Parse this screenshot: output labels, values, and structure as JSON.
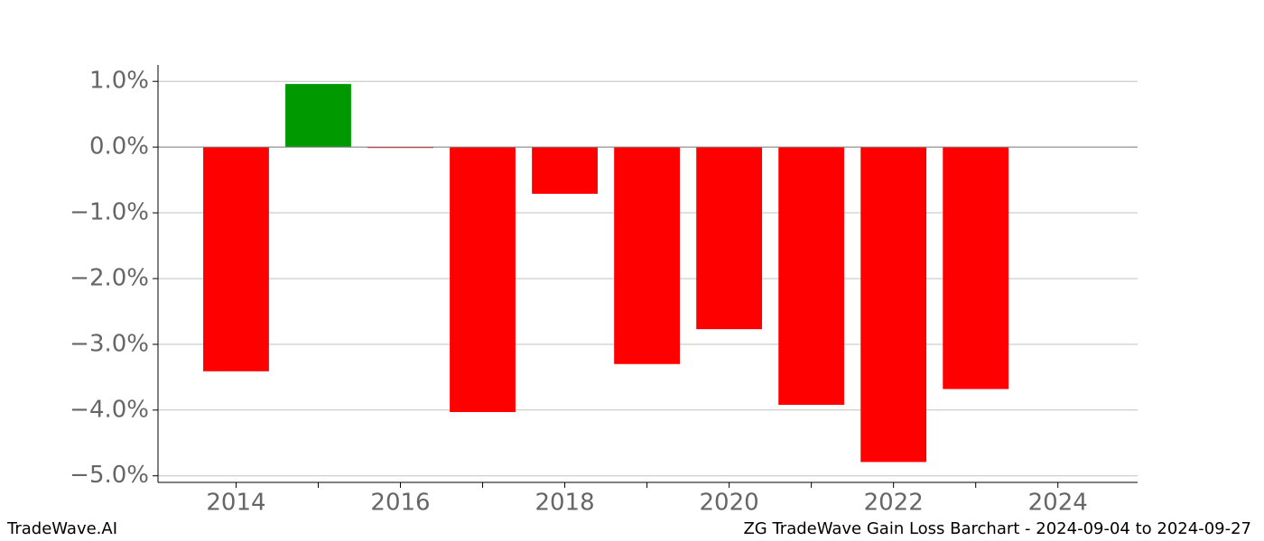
{
  "chart_data": {
    "type": "bar",
    "x": [
      2014,
      2015,
      2016,
      2017,
      2018,
      2019,
      2020,
      2021,
      2022,
      2023
    ],
    "values": [
      -3.41,
      0.96,
      -0.01,
      -4.03,
      -0.71,
      -3.3,
      -2.77,
      -3.92,
      -4.79,
      -3.68
    ],
    "positive_color": "#009900",
    "negative_color": "#ff0000",
    "xlim": [
      2013.05,
      2024.97
    ],
    "xticks": [
      2014,
      2016,
      2018,
      2020,
      2022,
      2024
    ],
    "xminorticks": [
      2015,
      2017,
      2019,
      2021,
      2023
    ],
    "ylim": [
      -5.1,
      1.25
    ],
    "yticks": [
      {
        "value": 1,
        "label": "1.0%"
      },
      {
        "value": 0,
        "label": "0.0%"
      },
      {
        "value": -1,
        "label": "−1.0%"
      },
      {
        "value": -2,
        "label": "−2.0%"
      },
      {
        "value": -3,
        "label": "−3.0%"
      },
      {
        "value": -4,
        "label": "−4.0%"
      },
      {
        "value": -5,
        "label": "−5.0%"
      }
    ],
    "grid": true,
    "watermark": "TradeWave.AI",
    "footer": "ZG TradeWave Gain Loss Barchart - 2024-09-04 to 2024-09-27"
  }
}
